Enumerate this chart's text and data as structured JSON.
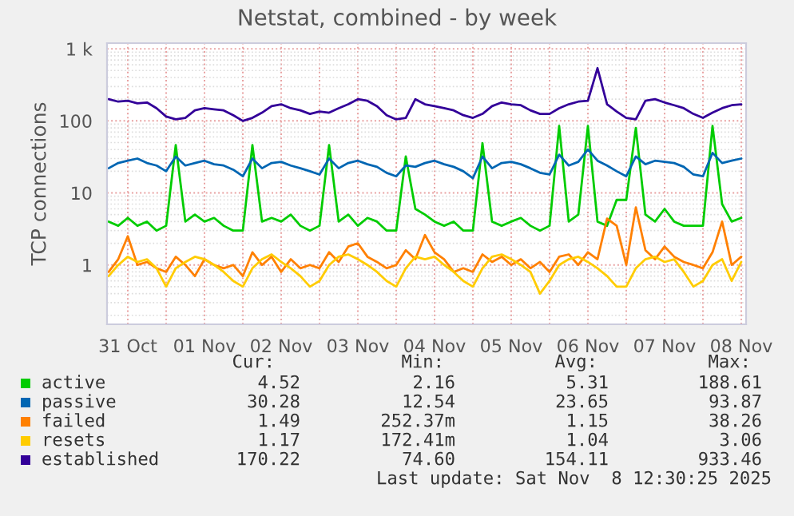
{
  "chart_data": {
    "type": "line",
    "title": "Netstat, combined - by week",
    "ylabel": "TCP connections",
    "x": [
      "2025-10-31T06:00",
      "2025-10-31T09:00",
      "2025-10-31T12:00",
      "2025-10-31T15:00",
      "2025-10-31T18:00",
      "2025-10-31T21:00",
      "2025-11-01T00:00",
      "2025-11-01T03:00",
      "2025-11-01T06:00",
      "2025-11-01T09:00",
      "2025-11-01T12:00",
      "2025-11-01T15:00",
      "2025-11-01T18:00",
      "2025-11-01T21:00",
      "2025-11-02T00:00",
      "2025-11-02T03:00",
      "2025-11-02T06:00",
      "2025-11-02T09:00",
      "2025-11-02T12:00",
      "2025-11-02T15:00",
      "2025-11-02T18:00",
      "2025-11-02T21:00",
      "2025-11-03T00:00",
      "2025-11-03T03:00",
      "2025-11-03T06:00",
      "2025-11-03T09:00",
      "2025-11-03T12:00",
      "2025-11-03T15:00",
      "2025-11-03T18:00",
      "2025-11-03T21:00",
      "2025-11-04T00:00",
      "2025-11-04T03:00",
      "2025-11-04T06:00",
      "2025-11-04T09:00",
      "2025-11-04T12:00",
      "2025-11-04T15:00",
      "2025-11-04T18:00",
      "2025-11-04T21:00",
      "2025-11-05T00:00",
      "2025-11-05T03:00",
      "2025-11-05T06:00",
      "2025-11-05T09:00",
      "2025-11-05T12:00",
      "2025-11-05T15:00",
      "2025-11-05T18:00",
      "2025-11-05T21:00",
      "2025-11-06T00:00",
      "2025-11-06T03:00",
      "2025-11-06T06:00",
      "2025-11-06T09:00",
      "2025-11-06T12:00",
      "2025-11-06T15:00",
      "2025-11-06T18:00",
      "2025-11-06T21:00",
      "2025-11-07T00:00",
      "2025-11-07T03:00",
      "2025-11-07T06:00",
      "2025-11-07T09:00",
      "2025-11-07T12:00",
      "2025-11-07T15:00",
      "2025-11-07T18:00",
      "2025-11-07T21:00",
      "2025-11-08T00:00",
      "2025-11-08T03:00",
      "2025-11-08T06:00",
      "2025-11-08T09:00",
      "2025-11-08T12:00"
    ],
    "series": [
      {
        "name": "active",
        "color": "#00cc00",
        "values": [
          4,
          3.5,
          4.5,
          3.5,
          4,
          3,
          3.5,
          46,
          4,
          5,
          4,
          4.5,
          3.5,
          3,
          3,
          46,
          4,
          4.5,
          4,
          5,
          3.5,
          3,
          3.5,
          46,
          4,
          5,
          3.5,
          4.5,
          4,
          3,
          3,
          32,
          6,
          5,
          4,
          3.5,
          4,
          3,
          3,
          49,
          4,
          3.5,
          4,
          4.5,
          3.5,
          3,
          3.5,
          85,
          4,
          5,
          85,
          4,
          3.5,
          8,
          8,
          80,
          5,
          4,
          6,
          4,
          3.5,
          3.5,
          3.5,
          85,
          7,
          4,
          4.5
        ]
      },
      {
        "name": "passive",
        "color": "#0066b3",
        "values": [
          22,
          26,
          28,
          30,
          26,
          24,
          20,
          32,
          24,
          26,
          28,
          25,
          24,
          21,
          17,
          30,
          22,
          26,
          27,
          24,
          22,
          20,
          18,
          30,
          22,
          26,
          28,
          25,
          23,
          19,
          17,
          24,
          23,
          26,
          28,
          25,
          23,
          20,
          16,
          32,
          22,
          26,
          27,
          25,
          22,
          19,
          18,
          34,
          24,
          27,
          40,
          28,
          24,
          20,
          17,
          32,
          25,
          28,
          27,
          26,
          23,
          18,
          17,
          36,
          26,
          28,
          30
        ]
      },
      {
        "name": "failed",
        "color": "#ff8000",
        "values": [
          0.8,
          1.2,
          2.5,
          1,
          1.1,
          0.9,
          0.8,
          1.3,
          1,
          0.7,
          1.2,
          1,
          0.9,
          1,
          0.7,
          1.5,
          1,
          1.3,
          0.8,
          1.2,
          0.9,
          1,
          0.9,
          1.5,
          1.1,
          1.8,
          2,
          1.3,
          1.1,
          0.9,
          1,
          1.6,
          1.2,
          2.6,
          1.5,
          1.2,
          0.8,
          0.9,
          0.8,
          1.4,
          1.1,
          1.3,
          1,
          1.2,
          0.9,
          1.1,
          0.8,
          1.3,
          1.4,
          1,
          1.5,
          1.2,
          4.4,
          3.5,
          1,
          6.3,
          1.6,
          1.2,
          1.8,
          1.3,
          1.1,
          1,
          0.9,
          1.5,
          4,
          1,
          1.3
        ]
      },
      {
        "name": "resets",
        "color": "#ffcc00",
        "values": [
          0.7,
          1,
          1.3,
          1.1,
          1.2,
          0.9,
          0.5,
          0.9,
          1.1,
          1.3,
          1.2,
          1,
          0.8,
          0.6,
          0.5,
          0.9,
          1.2,
          1.4,
          1.1,
          0.9,
          0.7,
          0.5,
          0.6,
          1,
          1.3,
          1.4,
          1.2,
          1,
          0.8,
          0.6,
          0.5,
          0.9,
          1.3,
          1.2,
          1.3,
          1,
          0.8,
          0.6,
          0.5,
          0.9,
          1.3,
          1.4,
          1.2,
          1,
          0.8,
          0.4,
          0.6,
          1,
          1.2,
          1.3,
          1.1,
          0.9,
          0.7,
          0.5,
          0.5,
          0.9,
          1.2,
          1.3,
          1.1,
          1.2,
          0.8,
          0.5,
          0.6,
          1,
          1.2,
          0.6,
          1.1
        ]
      },
      {
        "name": "established",
        "color": "#330099",
        "values": [
          200,
          185,
          190,
          175,
          180,
          150,
          115,
          105,
          110,
          140,
          150,
          145,
          140,
          120,
          100,
          110,
          130,
          160,
          170,
          150,
          140,
          125,
          135,
          130,
          150,
          170,
          200,
          190,
          160,
          120,
          105,
          110,
          200,
          170,
          160,
          150,
          140,
          120,
          110,
          125,
          160,
          180,
          170,
          165,
          140,
          125,
          125,
          150,
          170,
          185,
          190,
          540,
          170,
          135,
          110,
          105,
          190,
          200,
          180,
          165,
          150,
          125,
          110,
          130,
          150,
          165,
          170
        ]
      }
    ],
    "log": "y",
    "xlim": [
      "2025-10-31T05:30",
      "2025-11-08T13:30"
    ],
    "xticks": [
      {
        "value": "2025-10-31T12:00",
        "label": "31 Oct"
      },
      {
        "value": "2025-11-01T00:00",
        "label": null
      },
      {
        "value": "2025-11-01T12:00",
        "label": "01 Nov"
      },
      {
        "value": "2025-11-02T00:00",
        "label": null
      },
      {
        "value": "2025-11-02T12:00",
        "label": "02 Nov"
      },
      {
        "value": "2025-11-03T00:00",
        "label": null
      },
      {
        "value": "2025-11-03T12:00",
        "label": "03 Nov"
      },
      {
        "value": "2025-11-04T00:00",
        "label": null
      },
      {
        "value": "2025-11-04T12:00",
        "label": "04 Nov"
      },
      {
        "value": "2025-11-05T00:00",
        "label": null
      },
      {
        "value": "2025-11-05T12:00",
        "label": "05 Nov"
      },
      {
        "value": "2025-11-06T00:00",
        "label": null
      },
      {
        "value": "2025-11-06T12:00",
        "label": "06 Nov"
      },
      {
        "value": "2025-11-07T00:00",
        "label": null
      },
      {
        "value": "2025-11-07T12:00",
        "label": "07 Nov"
      },
      {
        "value": "2025-11-08T00:00",
        "label": null
      },
      {
        "value": "2025-11-08T12:00",
        "label": "08 Nov"
      }
    ],
    "ylim": [
      0.15,
      1200
    ],
    "yticks": [
      1,
      10,
      100,
      {
        "value": 1000,
        "label": "1 k"
      }
    ],
    "grid": true,
    "legend": "bottom",
    "annotations": [
      "Cur: Min: Avg: Max:",
      "4.52 2.16 5.31 188.61",
      "30.28 12.54 23.65 93.87",
      "1.49 252.37m 1.15 38.26",
      "1.17 172.41m 1.04 3.06",
      "170.22 74.60 154.11 933.46",
      "Last update: Sat Nov  8 12:30:25 2025"
    ]
  }
}
